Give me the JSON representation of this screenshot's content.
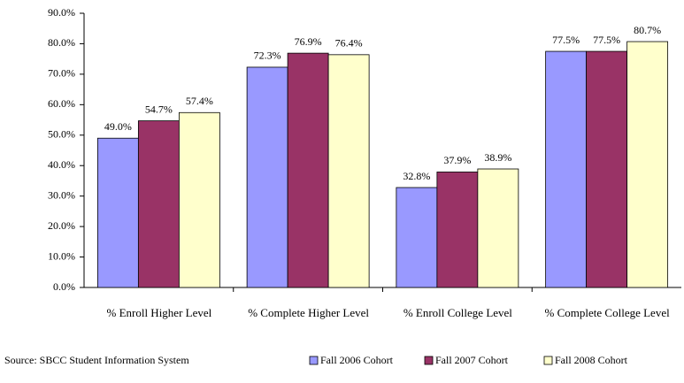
{
  "chart_data": {
    "type": "bar",
    "categories": [
      "% Enroll Higher Level",
      "% Complete Higher Level",
      "% Enroll College Level",
      "% Complete College Level"
    ],
    "series": [
      {
        "name": "Fall 2006 Cohort",
        "color": "#9999ff",
        "values": [
          49.0,
          72.3,
          32.8,
          77.5
        ],
        "value_labels": [
          "49.0%",
          "72.3%",
          "32.8%",
          "77.5%"
        ]
      },
      {
        "name": "Fall 2007 Cohort",
        "color": "#993366",
        "values": [
          54.7,
          76.9,
          37.9,
          77.5
        ],
        "value_labels": [
          "54.7%",
          "76.9%",
          "37.9%",
          "77.5%"
        ]
      },
      {
        "name": "Fall 2008 Cohort",
        "color": "#ffffcc",
        "values": [
          57.4,
          76.4,
          38.9,
          80.7
        ],
        "value_labels": [
          "57.4%",
          "76.4%",
          "38.9%",
          "80.7%"
        ]
      }
    ],
    "ylim": [
      0,
      90
    ],
    "yticks": [
      {
        "value": 0,
        "label": "0.0%"
      },
      {
        "value": 10,
        "label": "10.0%"
      },
      {
        "value": 20,
        "label": "20.0%"
      },
      {
        "value": 30,
        "label": "30.0%"
      },
      {
        "value": 40,
        "label": "40.0%"
      },
      {
        "value": 50,
        "label": "50.0%"
      },
      {
        "value": 60,
        "label": "60.0%"
      },
      {
        "value": 70,
        "label": "70.0%"
      },
      {
        "value": 80,
        "label": "80.0%"
      },
      {
        "value": 90,
        "label": "90.0%"
      }
    ],
    "grid": false,
    "source": "Source:  SBCC Student Information System",
    "legend": "bottom"
  }
}
